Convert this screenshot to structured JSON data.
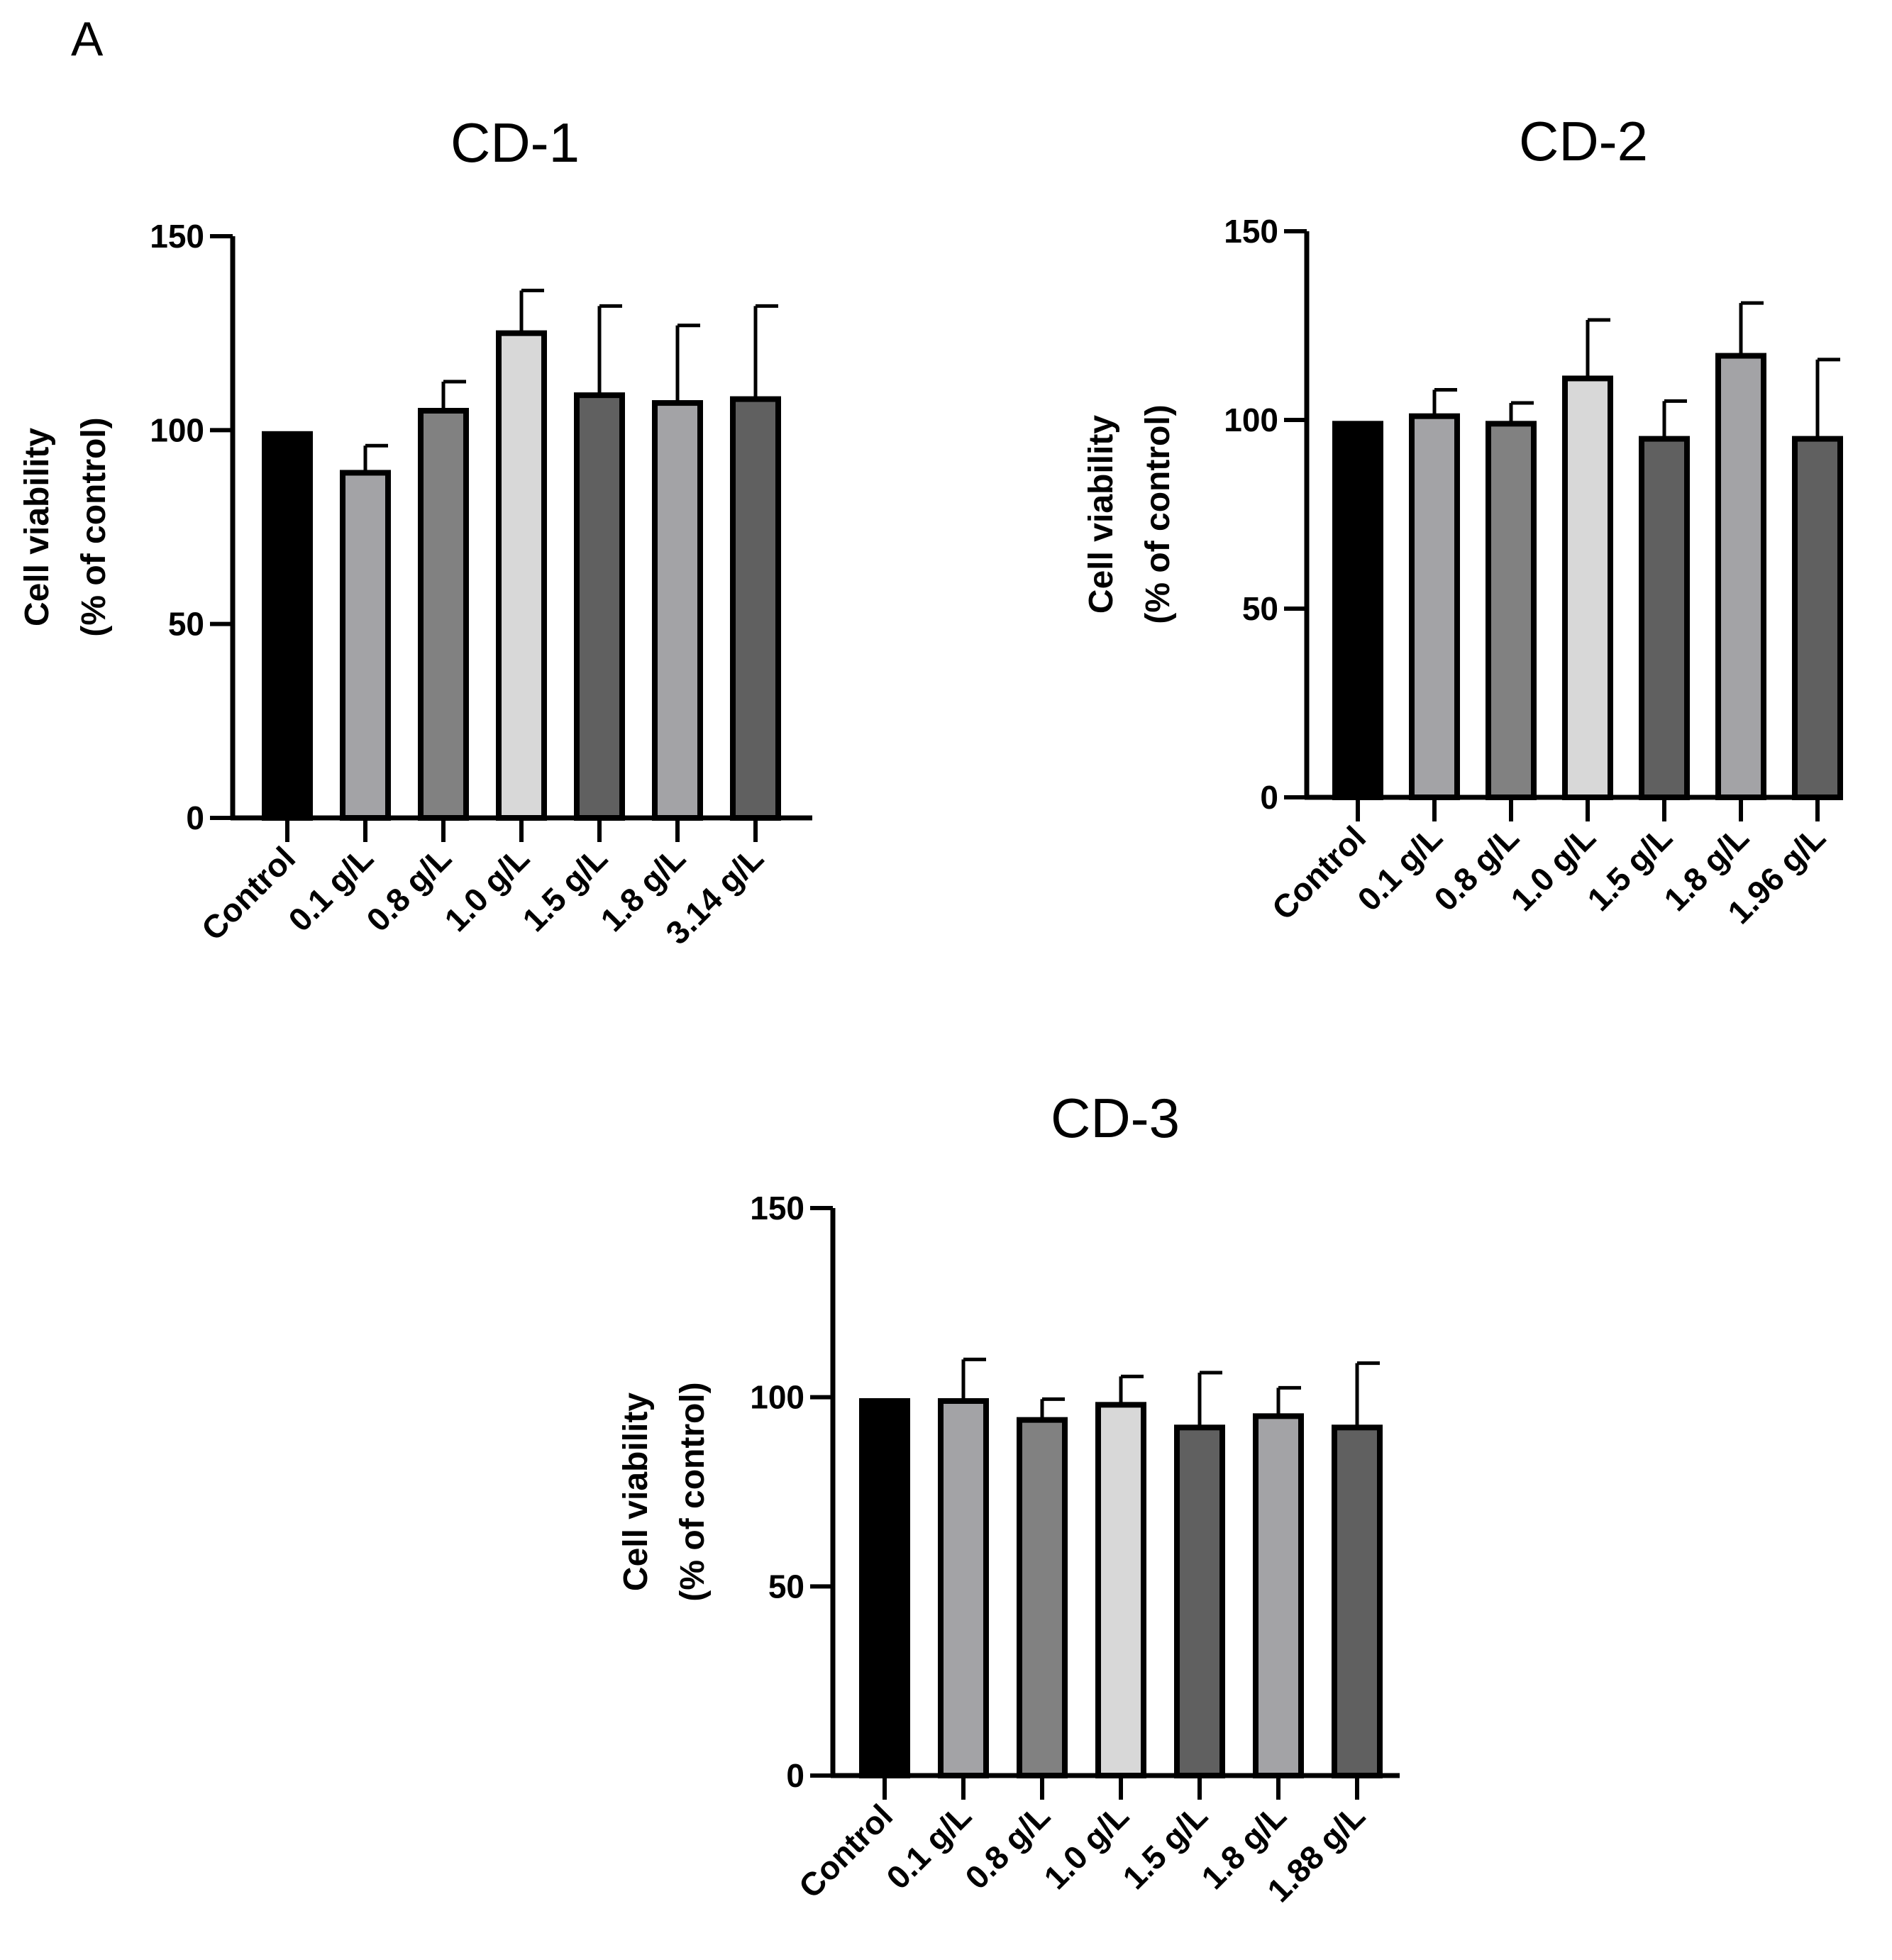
{
  "panel_label": "A",
  "chart_data": [
    {
      "type": "bar",
      "title": "CD-1",
      "ylabel_line1": "Cell viability",
      "ylabel_line2": "(% of control)",
      "xlabel": "",
      "ylim": [
        0,
        150
      ],
      "yticks": [
        "0",
        "50",
        "100",
        "150"
      ],
      "categories": [
        "Control",
        "0.1 g/L",
        "0.8 g/L",
        "1.0 g/L",
        "1.5 g/L",
        "1.8 g/L",
        "3.14 g/L"
      ],
      "values": [
        99,
        89,
        105,
        125,
        109,
        107,
        108
      ],
      "errors": [
        0,
        7,
        7.5,
        11,
        23,
        20,
        24
      ],
      "colors": [
        "#000000",
        "#a3a3a6",
        "#818181",
        "#d8d8d8",
        "#606060",
        "#a3a3a6",
        "#606060"
      ]
    },
    {
      "type": "bar",
      "title": "CD-2",
      "ylabel_line1": "Cell viability",
      "ylabel_line2": "(% of control)",
      "xlabel": "",
      "ylim": [
        0,
        150
      ],
      "yticks": [
        "0",
        "50",
        "100",
        "150"
      ],
      "categories": [
        "Control",
        "0.1 g/L",
        "0.8 g/L",
        "1.0 g/L",
        "1.5 g/L",
        "1.8 g/L",
        "1.96 g/L"
      ],
      "values": [
        99,
        101,
        99,
        111,
        95,
        117,
        95
      ],
      "errors": [
        0,
        7,
        5.5,
        15.5,
        10,
        14,
        21
      ],
      "colors": [
        "#000000",
        "#a3a3a6",
        "#818181",
        "#d8d8d8",
        "#606060",
        "#a3a3a6",
        "#606060"
      ]
    },
    {
      "type": "bar",
      "title": "CD-3",
      "ylabel_line1": "Cell viability",
      "ylabel_line2": "(% of control)",
      "xlabel": "",
      "ylim": [
        0,
        150
      ],
      "yticks": [
        "0",
        "50",
        "100",
        "150"
      ],
      "categories": [
        "Control",
        "0.1 g/L",
        "0.8 g/L",
        "1.0 g/L",
        "1.5 g/L",
        "1.8 g/L",
        "1.88 g/L"
      ],
      "values": [
        99,
        99,
        94,
        98,
        92,
        95,
        92
      ],
      "errors": [
        0,
        11,
        5.5,
        7.5,
        14.5,
        7.5,
        17
      ],
      "colors": [
        "#000000",
        "#a3a3a6",
        "#818181",
        "#d8d8d8",
        "#606060",
        "#a3a3a6",
        "#606060"
      ]
    }
  ]
}
